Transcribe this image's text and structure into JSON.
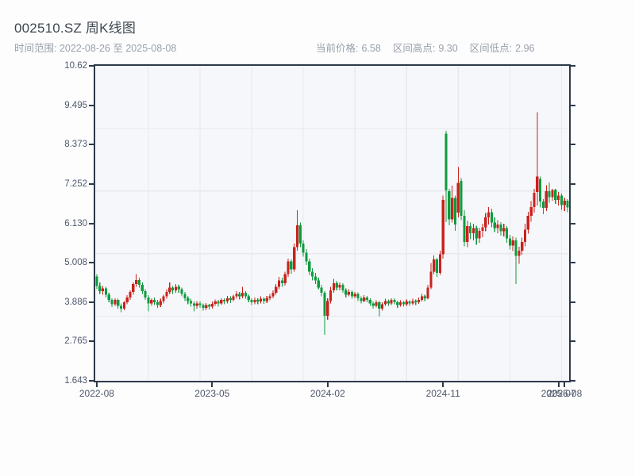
{
  "header": {
    "title": "002510.SZ 周K线图",
    "subtitle": "时间范围: 2022-08-26 至 2025-08-08",
    "stats": [
      {
        "label": "当前价格:",
        "value": "6.58"
      },
      {
        "label": "区间高点:",
        "value": "9.30"
      },
      {
        "label": "区间低点:",
        "value": "2.96"
      }
    ]
  },
  "chart_data": {
    "type": "candlestick",
    "title": "002510.SZ 周K线图",
    "symbol": "002510.SZ",
    "interval": "weekly",
    "date_start": "2022-08-26",
    "date_end": "2025-08-08",
    "current_price": 6.58,
    "range_high": 9.3,
    "range_low": 2.96,
    "ylim": [
      1.643,
      10.62
    ],
    "y_tick_labels": [
      "10.62",
      "9.495",
      "8.373",
      "7.252",
      "6.130",
      "5.008",
      "3.886",
      "2.765",
      "1.643"
    ],
    "x_ticks": [
      {
        "label": "2022-08",
        "week": 0
      },
      {
        "label": "2023-05",
        "week": 38
      },
      {
        "label": "2024-02",
        "week": 76
      },
      {
        "label": "2024-11",
        "week": 114
      },
      {
        "label": "2025-07",
        "week": 152
      },
      {
        "label": "2025-08",
        "week": 154
      }
    ],
    "up_color": "#c9221d",
    "down_color": "#0d9b3d",
    "grid": true,
    "candles_format": "[open, high, low, close] per week",
    "candles": [
      [
        4.62,
        4.68,
        4.25,
        4.35
      ],
      [
        4.35,
        4.45,
        4.12,
        4.2
      ],
      [
        4.2,
        4.35,
        4.1,
        4.28
      ],
      [
        4.28,
        4.32,
        4.02,
        4.1
      ],
      [
        4.1,
        4.15,
        3.88,
        3.95
      ],
      [
        3.95,
        4.0,
        3.75,
        3.82
      ],
      [
        3.82,
        4.0,
        3.78,
        3.95
      ],
      [
        3.95,
        3.98,
        3.7,
        3.78
      ],
      [
        3.78,
        3.85,
        3.6,
        3.7
      ],
      [
        3.7,
        3.92,
        3.65,
        3.88
      ],
      [
        3.88,
        4.08,
        3.82,
        4.02
      ],
      [
        4.02,
        4.22,
        3.95,
        4.18
      ],
      [
        4.18,
        4.45,
        4.1,
        4.4
      ],
      [
        4.4,
        4.68,
        4.32,
        4.52
      ],
      [
        4.52,
        4.58,
        4.3,
        4.38
      ],
      [
        4.38,
        4.45,
        4.12,
        4.2
      ],
      [
        4.2,
        4.25,
        3.95,
        4.02
      ],
      [
        4.02,
        4.08,
        3.62,
        3.85
      ],
      [
        3.85,
        4.0,
        3.78,
        3.95
      ],
      [
        3.95,
        4.02,
        3.8,
        3.88
      ],
      [
        3.88,
        3.95,
        3.72,
        3.8
      ],
      [
        3.8,
        3.98,
        3.75,
        3.92
      ],
      [
        3.92,
        4.1,
        3.85,
        4.05
      ],
      [
        4.05,
        4.25,
        3.98,
        4.18
      ],
      [
        4.18,
        4.45,
        4.12,
        4.3
      ],
      [
        4.3,
        4.35,
        4.12,
        4.22
      ],
      [
        4.22,
        4.4,
        4.15,
        4.32
      ],
      [
        4.32,
        4.38,
        4.15,
        4.25
      ],
      [
        4.25,
        4.3,
        4.05,
        4.12
      ],
      [
        4.12,
        4.18,
        3.92,
        4.0
      ],
      [
        4.0,
        4.05,
        3.82,
        3.92
      ],
      [
        3.92,
        3.98,
        3.76,
        3.85
      ],
      [
        3.85,
        3.9,
        3.62,
        3.78
      ],
      [
        3.78,
        3.92,
        3.7,
        3.85
      ],
      [
        3.85,
        3.9,
        3.72,
        3.8
      ],
      [
        3.8,
        3.85,
        3.64,
        3.72
      ],
      [
        3.72,
        3.86,
        3.66,
        3.8
      ],
      [
        3.8,
        3.84,
        3.68,
        3.76
      ],
      [
        3.76,
        3.9,
        3.7,
        3.84
      ],
      [
        3.84,
        3.96,
        3.78,
        3.9
      ],
      [
        3.9,
        3.95,
        3.76,
        3.85
      ],
      [
        3.85,
        4.0,
        3.8,
        3.95
      ],
      [
        3.95,
        4.0,
        3.82,
        3.9
      ],
      [
        3.9,
        4.06,
        3.85,
        4.0
      ],
      [
        4.0,
        4.05,
        3.86,
        3.95
      ],
      [
        3.95,
        4.1,
        3.9,
        4.05
      ],
      [
        4.05,
        4.2,
        3.98,
        4.12
      ],
      [
        4.12,
        4.18,
        3.96,
        4.05
      ],
      [
        4.05,
        4.32,
        4.0,
        4.15
      ],
      [
        4.15,
        4.2,
        3.98,
        4.05
      ],
      [
        4.05,
        4.1,
        3.88,
        3.95
      ],
      [
        3.95,
        4.0,
        3.8,
        3.88
      ],
      [
        3.88,
        4.02,
        3.82,
        3.95
      ],
      [
        3.95,
        4.0,
        3.82,
        3.9
      ],
      [
        3.9,
        4.05,
        3.85,
        3.98
      ],
      [
        3.98,
        4.02,
        3.84,
        3.92
      ],
      [
        3.92,
        4.06,
        3.86,
        4.0
      ],
      [
        4.0,
        4.12,
        3.94,
        4.05
      ],
      [
        4.05,
        4.22,
        4.0,
        4.15
      ],
      [
        4.15,
        4.4,
        4.1,
        4.32
      ],
      [
        4.32,
        4.6,
        4.25,
        4.5
      ],
      [
        4.5,
        4.58,
        4.32,
        4.42
      ],
      [
        4.42,
        4.75,
        4.36,
        4.68
      ],
      [
        4.68,
        5.12,
        4.6,
        5.05
      ],
      [
        5.05,
        5.1,
        4.7,
        4.82
      ],
      [
        4.82,
        5.55,
        4.75,
        5.45
      ],
      [
        5.45,
        6.5,
        5.35,
        6.08
      ],
      [
        6.08,
        6.15,
        5.45,
        5.55
      ],
      [
        5.55,
        5.65,
        5.18,
        5.3
      ],
      [
        5.3,
        5.4,
        4.95,
        5.05
      ],
      [
        5.05,
        5.12,
        4.65,
        4.75
      ],
      [
        4.75,
        4.85,
        4.5,
        4.62
      ],
      [
        4.62,
        4.72,
        4.4,
        4.5
      ],
      [
        4.5,
        4.58,
        4.25,
        4.3
      ],
      [
        4.3,
        4.38,
        4.05,
        4.15
      ],
      [
        4.15,
        4.2,
        2.96,
        3.5
      ],
      [
        3.5,
        4.0,
        3.38,
        3.92
      ],
      [
        3.92,
        4.32,
        3.85,
        4.22
      ],
      [
        4.22,
        4.55,
        4.15,
        4.42
      ],
      [
        4.42,
        4.48,
        4.22,
        4.3
      ],
      [
        4.3,
        4.45,
        4.22,
        4.38
      ],
      [
        4.38,
        4.42,
        4.15,
        4.22
      ],
      [
        4.22,
        4.28,
        4.02,
        4.1
      ],
      [
        4.1,
        4.25,
        4.05,
        4.18
      ],
      [
        4.18,
        4.22,
        3.98,
        4.05
      ],
      [
        4.05,
        4.18,
        4.0,
        4.12
      ],
      [
        4.12,
        4.16,
        3.92,
        4.0
      ],
      [
        4.0,
        4.05,
        3.85,
        3.92
      ],
      [
        3.92,
        4.08,
        3.88,
        4.02
      ],
      [
        4.02,
        4.06,
        3.88,
        3.95
      ],
      [
        3.95,
        4.0,
        3.78,
        3.85
      ],
      [
        3.85,
        3.9,
        3.7,
        3.78
      ],
      [
        3.78,
        3.94,
        3.74,
        3.88
      ],
      [
        3.88,
        3.92,
        3.47,
        3.7
      ],
      [
        3.7,
        3.88,
        3.64,
        3.82
      ],
      [
        3.82,
        3.98,
        3.78,
        3.92
      ],
      [
        3.92,
        3.96,
        3.78,
        3.85
      ],
      [
        3.85,
        4.0,
        3.8,
        3.95
      ],
      [
        3.95,
        4.0,
        3.82,
        3.88
      ],
      [
        3.88,
        3.92,
        3.72,
        3.8
      ],
      [
        3.8,
        3.94,
        3.76,
        3.88
      ],
      [
        3.88,
        3.92,
        3.76,
        3.82
      ],
      [
        3.82,
        3.96,
        3.78,
        3.9
      ],
      [
        3.9,
        3.94,
        3.78,
        3.85
      ],
      [
        3.85,
        3.98,
        3.8,
        3.92
      ],
      [
        3.92,
        3.96,
        3.8,
        3.88
      ],
      [
        3.88,
        4.02,
        3.84,
        3.95
      ],
      [
        3.95,
        4.12,
        3.9,
        4.05
      ],
      [
        4.05,
        4.1,
        3.92,
        4.0
      ],
      [
        4.0,
        4.38,
        3.96,
        4.3
      ],
      [
        4.3,
        5.0,
        4.26,
        4.75
      ],
      [
        4.75,
        5.22,
        4.68,
        5.1
      ],
      [
        5.1,
        5.15,
        4.6,
        4.72
      ],
      [
        4.72,
        5.35,
        4.66,
        5.25
      ],
      [
        5.25,
        6.92,
        5.12,
        6.8
      ],
      [
        8.69,
        8.77,
        6.16,
        7.07
      ],
      [
        7.05,
        7.12,
        6.08,
        6.25
      ],
      [
        6.25,
        7.2,
        6.15,
        6.85
      ],
      [
        6.85,
        6.92,
        5.92,
        6.1
      ],
      [
        6.44,
        7.74,
        6.3,
        7.29
      ],
      [
        7.34,
        7.42,
        6.22,
        6.35
      ],
      [
        6.35,
        6.5,
        5.48,
        5.6
      ],
      [
        5.6,
        6.2,
        5.45,
        6.05
      ],
      [
        6.05,
        6.15,
        5.68,
        5.85
      ],
      [
        5.85,
        6.12,
        5.65,
        6.0
      ],
      [
        6.0,
        6.06,
        5.52,
        5.7
      ],
      [
        5.7,
        6.0,
        5.58,
        5.92
      ],
      [
        5.92,
        6.12,
        5.74,
        6.02
      ],
      [
        6.02,
        6.42,
        5.9,
        6.3
      ],
      [
        6.3,
        6.6,
        6.1,
        6.45
      ],
      [
        6.45,
        6.55,
        6.02,
        6.15
      ],
      [
        6.15,
        6.3,
        5.88,
        6.0
      ],
      [
        6.0,
        6.22,
        5.85,
        6.1
      ],
      [
        6.1,
        6.16,
        5.78,
        5.9
      ],
      [
        5.9,
        6.12,
        5.76,
        6.0
      ],
      [
        6.0,
        6.05,
        5.58,
        5.7
      ],
      [
        5.7,
        5.8,
        5.38,
        5.5
      ],
      [
        5.5,
        5.76,
        5.34,
        5.65
      ],
      [
        5.65,
        5.72,
        4.4,
        5.2
      ],
      [
        5.2,
        5.46,
        4.98,
        5.35
      ],
      [
        5.35,
        5.72,
        5.24,
        5.6
      ],
      [
        5.6,
        6.12,
        5.48,
        5.95
      ],
      [
        5.95,
        6.46,
        5.84,
        6.35
      ],
      [
        6.35,
        6.76,
        6.18,
        6.6
      ],
      [
        6.6,
        7.12,
        6.44,
        7.0
      ],
      [
        7.02,
        9.3,
        6.64,
        7.47
      ],
      [
        7.4,
        7.46,
        6.58,
        6.75
      ],
      [
        6.75,
        6.82,
        6.39,
        6.57
      ],
      [
        6.57,
        7.22,
        6.48,
        7.05
      ],
      [
        7.05,
        7.3,
        6.72,
        6.88
      ],
      [
        6.88,
        7.12,
        6.78,
        7.08
      ],
      [
        7.08,
        7.12,
        6.68,
        6.8
      ],
      [
        6.8,
        7.02,
        6.64,
        6.92
      ],
      [
        6.92,
        6.98,
        6.52,
        6.65
      ],
      [
        6.65,
        6.86,
        6.48,
        6.78
      ],
      [
        6.78,
        6.82,
        6.45,
        6.58
      ]
    ]
  }
}
